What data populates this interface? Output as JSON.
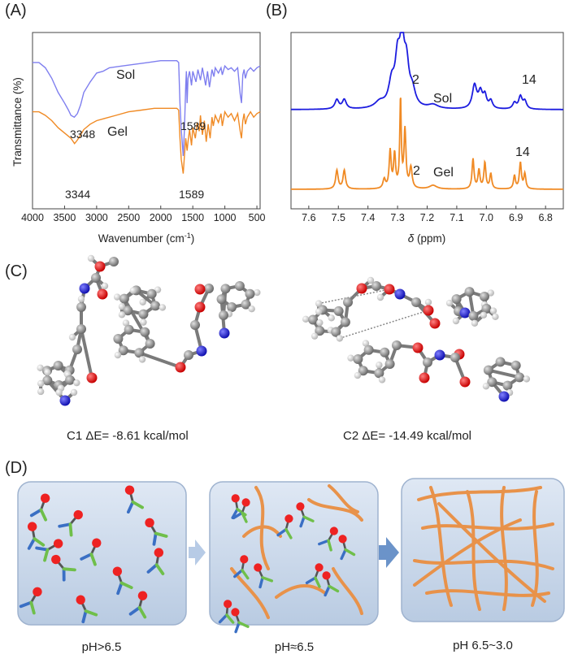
{
  "panels": {
    "a": "(A)",
    "b": "(B)",
    "c": "(C)",
    "d": "(D)"
  },
  "chart_data": [
    {
      "id": "A",
      "type": "line",
      "title": "",
      "xlabel": "Wavenumber (cm",
      "xlabel_sup": "-1",
      "xlabel_close": ")",
      "ylabel": "Transmittance (%)",
      "xlim": [
        4000,
        450
      ],
      "x_ticks": [
        "4000",
        "3500",
        "3000",
        "2500",
        "2000",
        "1500",
        "1000",
        "500"
      ],
      "x_tick_values": [
        4000,
        3500,
        3000,
        2500,
        2000,
        1500,
        1000,
        500
      ],
      "series": [
        {
          "name": "Sol",
          "color": "#7f7fef",
          "points": [
            [
              4000,
              0.83
            ],
            [
              3900,
              0.83
            ],
            [
              3800,
              0.8
            ],
            [
              3700,
              0.74
            ],
            [
              3600,
              0.66
            ],
            [
              3500,
              0.6
            ],
            [
              3440,
              0.56
            ],
            [
              3400,
              0.53
            ],
            [
              3348,
              0.52
            ],
            [
              3300,
              0.54
            ],
            [
              3250,
              0.59
            ],
            [
              3200,
              0.66
            ],
            [
              3100,
              0.72
            ],
            [
              3000,
              0.77
            ],
            [
              2900,
              0.78
            ],
            [
              2800,
              0.8
            ],
            [
              2600,
              0.81
            ],
            [
              2400,
              0.82
            ],
            [
              2200,
              0.83
            ],
            [
              2000,
              0.84
            ],
            [
              1900,
              0.84
            ],
            [
              1750,
              0.84
            ],
            [
              1720,
              0.83
            ],
            [
              1700,
              0.6
            ],
            [
              1680,
              0.45
            ],
            [
              1650,
              0.3
            ],
            [
              1630,
              0.45
            ],
            [
              1610,
              0.7
            ],
            [
              1600,
              0.78
            ],
            [
              1589,
              0.6
            ],
            [
              1575,
              0.74
            ],
            [
              1550,
              0.78
            ],
            [
              1520,
              0.7
            ],
            [
              1500,
              0.78
            ],
            [
              1450,
              0.72
            ],
            [
              1420,
              0.79
            ],
            [
              1380,
              0.73
            ],
            [
              1350,
              0.8
            ],
            [
              1300,
              0.7
            ],
            [
              1270,
              0.78
            ],
            [
              1240,
              0.69
            ],
            [
              1200,
              0.79
            ],
            [
              1170,
              0.75
            ],
            [
              1150,
              0.8
            ],
            [
              1100,
              0.77
            ],
            [
              1060,
              0.8
            ],
            [
              1040,
              0.76
            ],
            [
              1000,
              0.81
            ],
            [
              950,
              0.79
            ],
            [
              900,
              0.8
            ],
            [
              850,
              0.78
            ],
            [
              800,
              0.8
            ],
            [
              760,
              0.65
            ],
            [
              740,
              0.6
            ],
            [
              720,
              0.76
            ],
            [
              700,
              0.79
            ],
            [
              680,
              0.74
            ],
            [
              650,
              0.78
            ],
            [
              600,
              0.8
            ],
            [
              550,
              0.78
            ],
            [
              500,
              0.8
            ],
            [
              450,
              0.81
            ]
          ]
        },
        {
          "name": "Gel",
          "color": "#f08a24",
          "points": [
            [
              4000,
              0.55
            ],
            [
              3900,
              0.55
            ],
            [
              3800,
              0.53
            ],
            [
              3700,
              0.5
            ],
            [
              3600,
              0.46
            ],
            [
              3500,
              0.43
            ],
            [
              3400,
              0.4
            ],
            [
              3344,
              0.37
            ],
            [
              3300,
              0.39
            ],
            [
              3250,
              0.42
            ],
            [
              3200,
              0.45
            ],
            [
              3100,
              0.48
            ],
            [
              3000,
              0.5
            ],
            [
              2900,
              0.51
            ],
            [
              2700,
              0.53
            ],
            [
              2500,
              0.55
            ],
            [
              2300,
              0.56
            ],
            [
              2100,
              0.57
            ],
            [
              1900,
              0.57
            ],
            [
              1750,
              0.57
            ],
            [
              1720,
              0.56
            ],
            [
              1700,
              0.4
            ],
            [
              1680,
              0.28
            ],
            [
              1650,
              0.2
            ],
            [
              1630,
              0.3
            ],
            [
              1610,
              0.4
            ],
            [
              1589,
              0.33
            ],
            [
              1575,
              0.38
            ],
            [
              1550,
              0.45
            ],
            [
              1520,
              0.36
            ],
            [
              1500,
              0.46
            ],
            [
              1460,
              0.4
            ],
            [
              1430,
              0.49
            ],
            [
              1400,
              0.44
            ],
            [
              1380,
              0.53
            ],
            [
              1350,
              0.42
            ],
            [
              1320,
              0.5
            ],
            [
              1290,
              0.38
            ],
            [
              1260,
              0.48
            ],
            [
              1230,
              0.4
            ],
            [
              1200,
              0.52
            ],
            [
              1180,
              0.47
            ],
            [
              1150,
              0.53
            ],
            [
              1100,
              0.49
            ],
            [
              1060,
              0.54
            ],
            [
              1040,
              0.47
            ],
            [
              1000,
              0.55
            ],
            [
              950,
              0.52
            ],
            [
              900,
              0.54
            ],
            [
              850,
              0.5
            ],
            [
              800,
              0.54
            ],
            [
              760,
              0.44
            ],
            [
              740,
              0.4
            ],
            [
              720,
              0.5
            ],
            [
              700,
              0.54
            ],
            [
              680,
              0.48
            ],
            [
              650,
              0.52
            ],
            [
              600,
              0.55
            ],
            [
              550,
              0.52
            ],
            [
              500,
              0.54
            ],
            [
              450,
              0.55
            ]
          ]
        }
      ],
      "series_labels": [
        "Sol",
        "Gel"
      ],
      "annotations": [
        "3348",
        "1589",
        "3344",
        "1589"
      ]
    },
    {
      "id": "B",
      "type": "line",
      "title": "",
      "xlabel_symbol": "δ",
      "xlabel": " (ppm)",
      "ylabel": "",
      "xlim": [
        7.66,
        6.74
      ],
      "x_ticks": [
        "7.6",
        "7.5",
        "7.4",
        "7.3",
        "7.2",
        "7.1",
        "7.0",
        "6.9",
        "6.8"
      ],
      "x_tick_values": [
        7.6,
        7.5,
        7.4,
        7.3,
        7.2,
        7.1,
        7.0,
        6.9,
        6.8
      ],
      "series": [
        {
          "name": "Sol",
          "color": "#1c1cdf",
          "peaks": [
            [
              7.505,
              0.12,
              0.008
            ],
            [
              7.48,
              0.12,
              0.008
            ],
            [
              7.36,
              0.08,
              0.02
            ],
            [
              7.32,
              0.3,
              0.012
            ],
            [
              7.3,
              0.55,
              0.01
            ],
            [
              7.285,
              0.75,
              0.009
            ],
            [
              7.27,
              0.5,
              0.01
            ],
            [
              7.25,
              0.2,
              0.012
            ],
            [
              7.18,
              0.05,
              0.02
            ],
            [
              7.04,
              0.3,
              0.009
            ],
            [
              7.02,
              0.2,
              0.008
            ],
            [
              7.005,
              0.16,
              0.007
            ],
            [
              6.985,
              0.1,
              0.007
            ],
            [
              6.905,
              0.08,
              0.007
            ],
            [
              6.885,
              0.16,
              0.007
            ],
            [
              6.87,
              0.1,
              0.007
            ]
          ]
        },
        {
          "name": "Gel",
          "color": "#f08a24",
          "peaks": [
            [
              7.505,
              0.2,
              0.005
            ],
            [
              7.48,
              0.2,
              0.005
            ],
            [
              7.345,
              0.1,
              0.005
            ],
            [
              7.325,
              0.4,
              0.004
            ],
            [
              7.31,
              0.36,
              0.004
            ],
            [
              7.29,
              0.95,
              0.003
            ],
            [
              7.275,
              0.62,
              0.004
            ],
            [
              7.255,
              0.22,
              0.005
            ],
            [
              7.18,
              0.04,
              0.015
            ],
            [
              7.045,
              0.32,
              0.004
            ],
            [
              7.025,
              0.2,
              0.004
            ],
            [
              7.005,
              0.28,
              0.004
            ],
            [
              6.985,
              0.16,
              0.004
            ],
            [
              6.905,
              0.14,
              0.004
            ],
            [
              6.885,
              0.28,
              0.004
            ],
            [
              6.87,
              0.16,
              0.004
            ]
          ]
        }
      ],
      "annotations": [
        "2",
        "Sol",
        "14",
        "2",
        "Gel",
        "14"
      ]
    }
  ],
  "panel_c": {
    "c1_label": "C1  ΔE= -8.61 kcal/mol",
    "c2_label": "C2  ΔE= -14.49 kcal/mol"
  },
  "panel_d": {
    "labels": [
      "pH>6.5",
      "pH≈6.5",
      "pH 6.5~3.0"
    ],
    "colors": {
      "box": "#c9d7ea",
      "fiber": "#e8924a",
      "red": "#ee2222",
      "blue": "#3a6fc4",
      "green": "#6fbf4a",
      "arrow": "#6b93c9"
    }
  }
}
